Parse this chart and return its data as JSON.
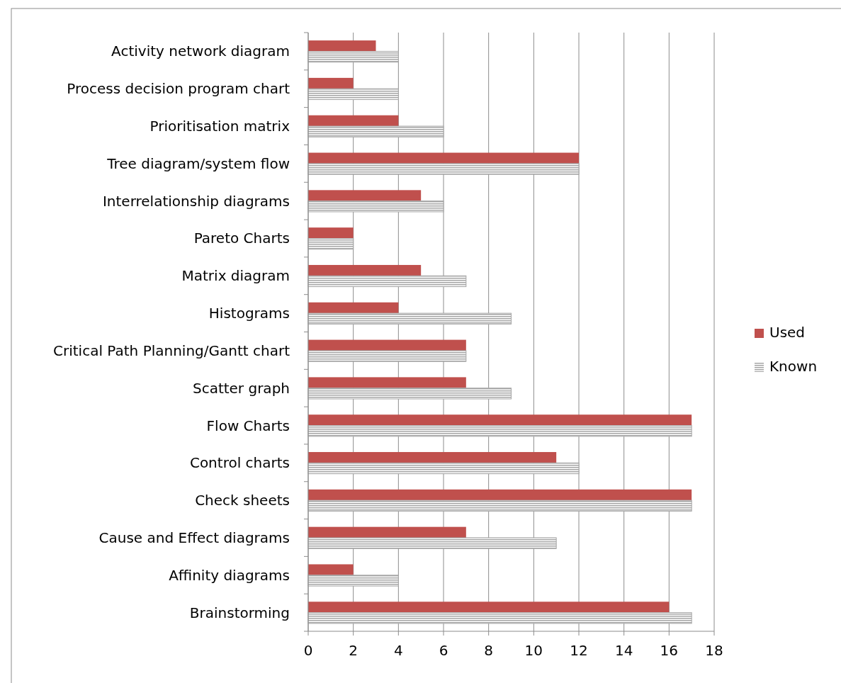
{
  "chart_data": {
    "type": "bar",
    "orientation": "horizontal",
    "categories": [
      "Activity network diagram",
      "Process decision program chart",
      "Prioritisation matrix",
      "Tree diagram/system flow",
      "Interrelationship diagrams",
      "Pareto Charts",
      "Matrix diagram",
      "Histograms",
      "Critical Path Planning/Gantt chart",
      "Scatter graph",
      "Flow Charts",
      "Control charts",
      "Check sheets",
      "Cause and Effect diagrams",
      "Affinity diagrams",
      "Brainstorming"
    ],
    "series": [
      {
        "name": "Used",
        "color": "#c0504d",
        "values": [
          3,
          2,
          4,
          12,
          5,
          2,
          5,
          4,
          7,
          7,
          17,
          11,
          17,
          7,
          2,
          16
        ]
      },
      {
        "name": "Known",
        "color": "#a6a6a6",
        "values": [
          4,
          4,
          6,
          12,
          6,
          2,
          7,
          9,
          7,
          9,
          17,
          12,
          17,
          11,
          4,
          17
        ]
      }
    ],
    "xlim": [
      0,
      18
    ],
    "xticks": [
      0,
      2,
      4,
      6,
      8,
      10,
      12,
      14,
      16,
      18
    ],
    "grid": "x",
    "legend": "right"
  }
}
